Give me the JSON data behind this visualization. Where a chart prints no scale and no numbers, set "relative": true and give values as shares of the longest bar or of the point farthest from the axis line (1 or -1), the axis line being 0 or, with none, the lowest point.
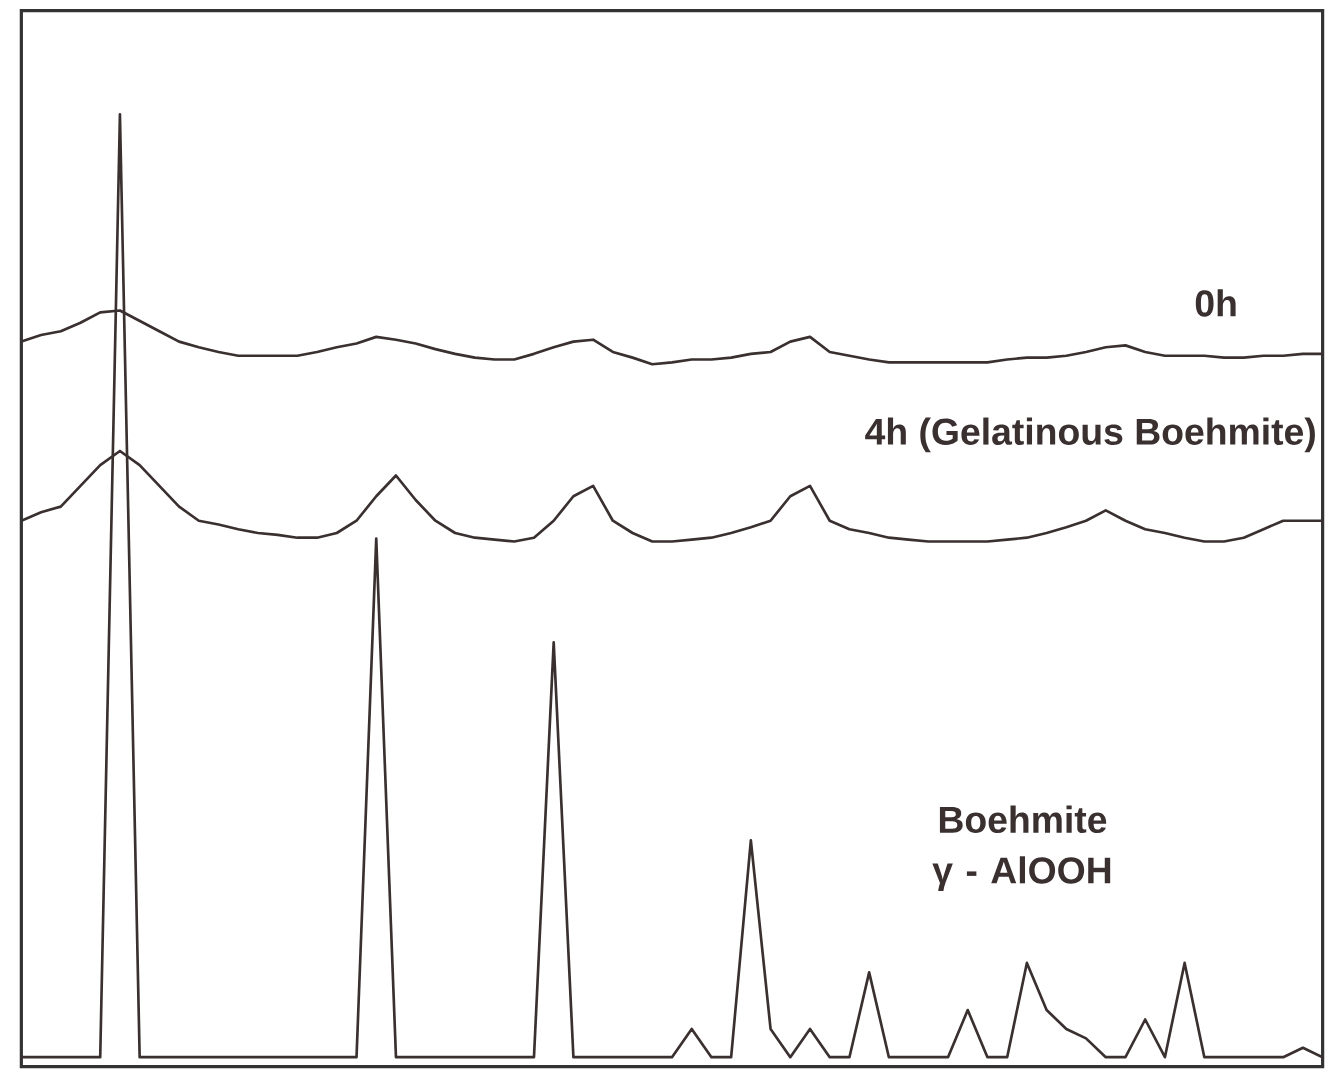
{
  "chart_data": {
    "type": "line",
    "relative": true,
    "tick_labels": false,
    "legend": false,
    "marker": "none",
    "line_style": "solid",
    "categories": [
      null,
      null,
      null,
      null,
      null,
      null,
      null,
      null,
      null,
      null,
      null,
      null,
      null,
      null,
      null,
      null,
      null,
      null,
      null,
      null,
      null,
      null,
      null,
      null,
      null,
      null,
      null,
      null,
      null,
      null,
      null,
      null,
      null,
      null,
      null,
      null,
      null,
      null,
      null,
      null,
      null,
      null,
      null,
      null,
      null,
      null,
      null,
      null,
      null,
      null,
      null,
      null,
      null,
      null,
      null,
      null,
      null,
      null,
      null,
      null,
      null,
      null,
      null,
      null,
      null,
      null,
      null
    ],
    "series": [
      {
        "name": "0h",
        "color": "#3a3030",
        "values": [
          0.759,
          0.766,
          0.77,
          0.779,
          0.79,
          0.792,
          0.781,
          0.77,
          0.759,
          0.753,
          0.748,
          0.744,
          0.744,
          0.744,
          0.744,
          0.748,
          0.753,
          0.757,
          0.764,
          0.761,
          0.757,
          0.751,
          0.746,
          0.742,
          0.74,
          0.74,
          0.746,
          0.753,
          0.759,
          0.761,
          0.748,
          0.742,
          0.735,
          0.737,
          0.74,
          0.74,
          0.742,
          0.746,
          0.748,
          0.759,
          0.764,
          0.748,
          0.744,
          0.74,
          0.737,
          0.737,
          0.737,
          0.737,
          0.737,
          0.737,
          0.74,
          0.742,
          0.742,
          0.744,
          0.748,
          0.753,
          0.755,
          0.748,
          0.744,
          0.744,
          0.744,
          0.742,
          0.742,
          0.744,
          0.744,
          0.746,
          0.746
        ]
      },
      {
        "name": "4h (Gelatinous Boehmite)",
        "color": "#3a3030",
        "values": [
          0.569,
          0.578,
          0.584,
          0.606,
          0.628,
          0.643,
          0.628,
          0.606,
          0.584,
          0.569,
          0.565,
          0.56,
          0.556,
          0.554,
          0.551,
          0.551,
          0.556,
          0.569,
          0.595,
          0.617,
          0.591,
          0.569,
          0.556,
          0.551,
          0.549,
          0.547,
          0.551,
          0.569,
          0.595,
          0.606,
          0.569,
          0.556,
          0.547,
          0.547,
          0.549,
          0.551,
          0.556,
          0.562,
          0.569,
          0.595,
          0.606,
          0.569,
          0.56,
          0.556,
          0.551,
          0.549,
          0.547,
          0.547,
          0.547,
          0.547,
          0.549,
          0.551,
          0.556,
          0.562,
          0.569,
          0.58,
          0.569,
          0.56,
          0.556,
          0.551,
          0.547,
          0.547,
          0.551,
          0.56,
          0.569,
          0.569,
          0.569
        ]
      },
      {
        "name": "Boehmite γ - AlOOH",
        "color": "#3a3030",
        "values": [
          0,
          0,
          0,
          0,
          0,
          1.0,
          0,
          0,
          0,
          0,
          0,
          0,
          0,
          0,
          0,
          0,
          0,
          0,
          0.55,
          0,
          0,
          0,
          0,
          0,
          0,
          0,
          0,
          0.44,
          0,
          0,
          0,
          0,
          0,
          0,
          0.03,
          0,
          0,
          0.23,
          0.03,
          0,
          0.03,
          0,
          0,
          0.09,
          0,
          0,
          0,
          0,
          0.05,
          0,
          0,
          0.1,
          0.05,
          0.03,
          0.02,
          0,
          0,
          0.04,
          0,
          0.1,
          0,
          0,
          0,
          0,
          0,
          0.01,
          0
        ]
      }
    ]
  }
}
